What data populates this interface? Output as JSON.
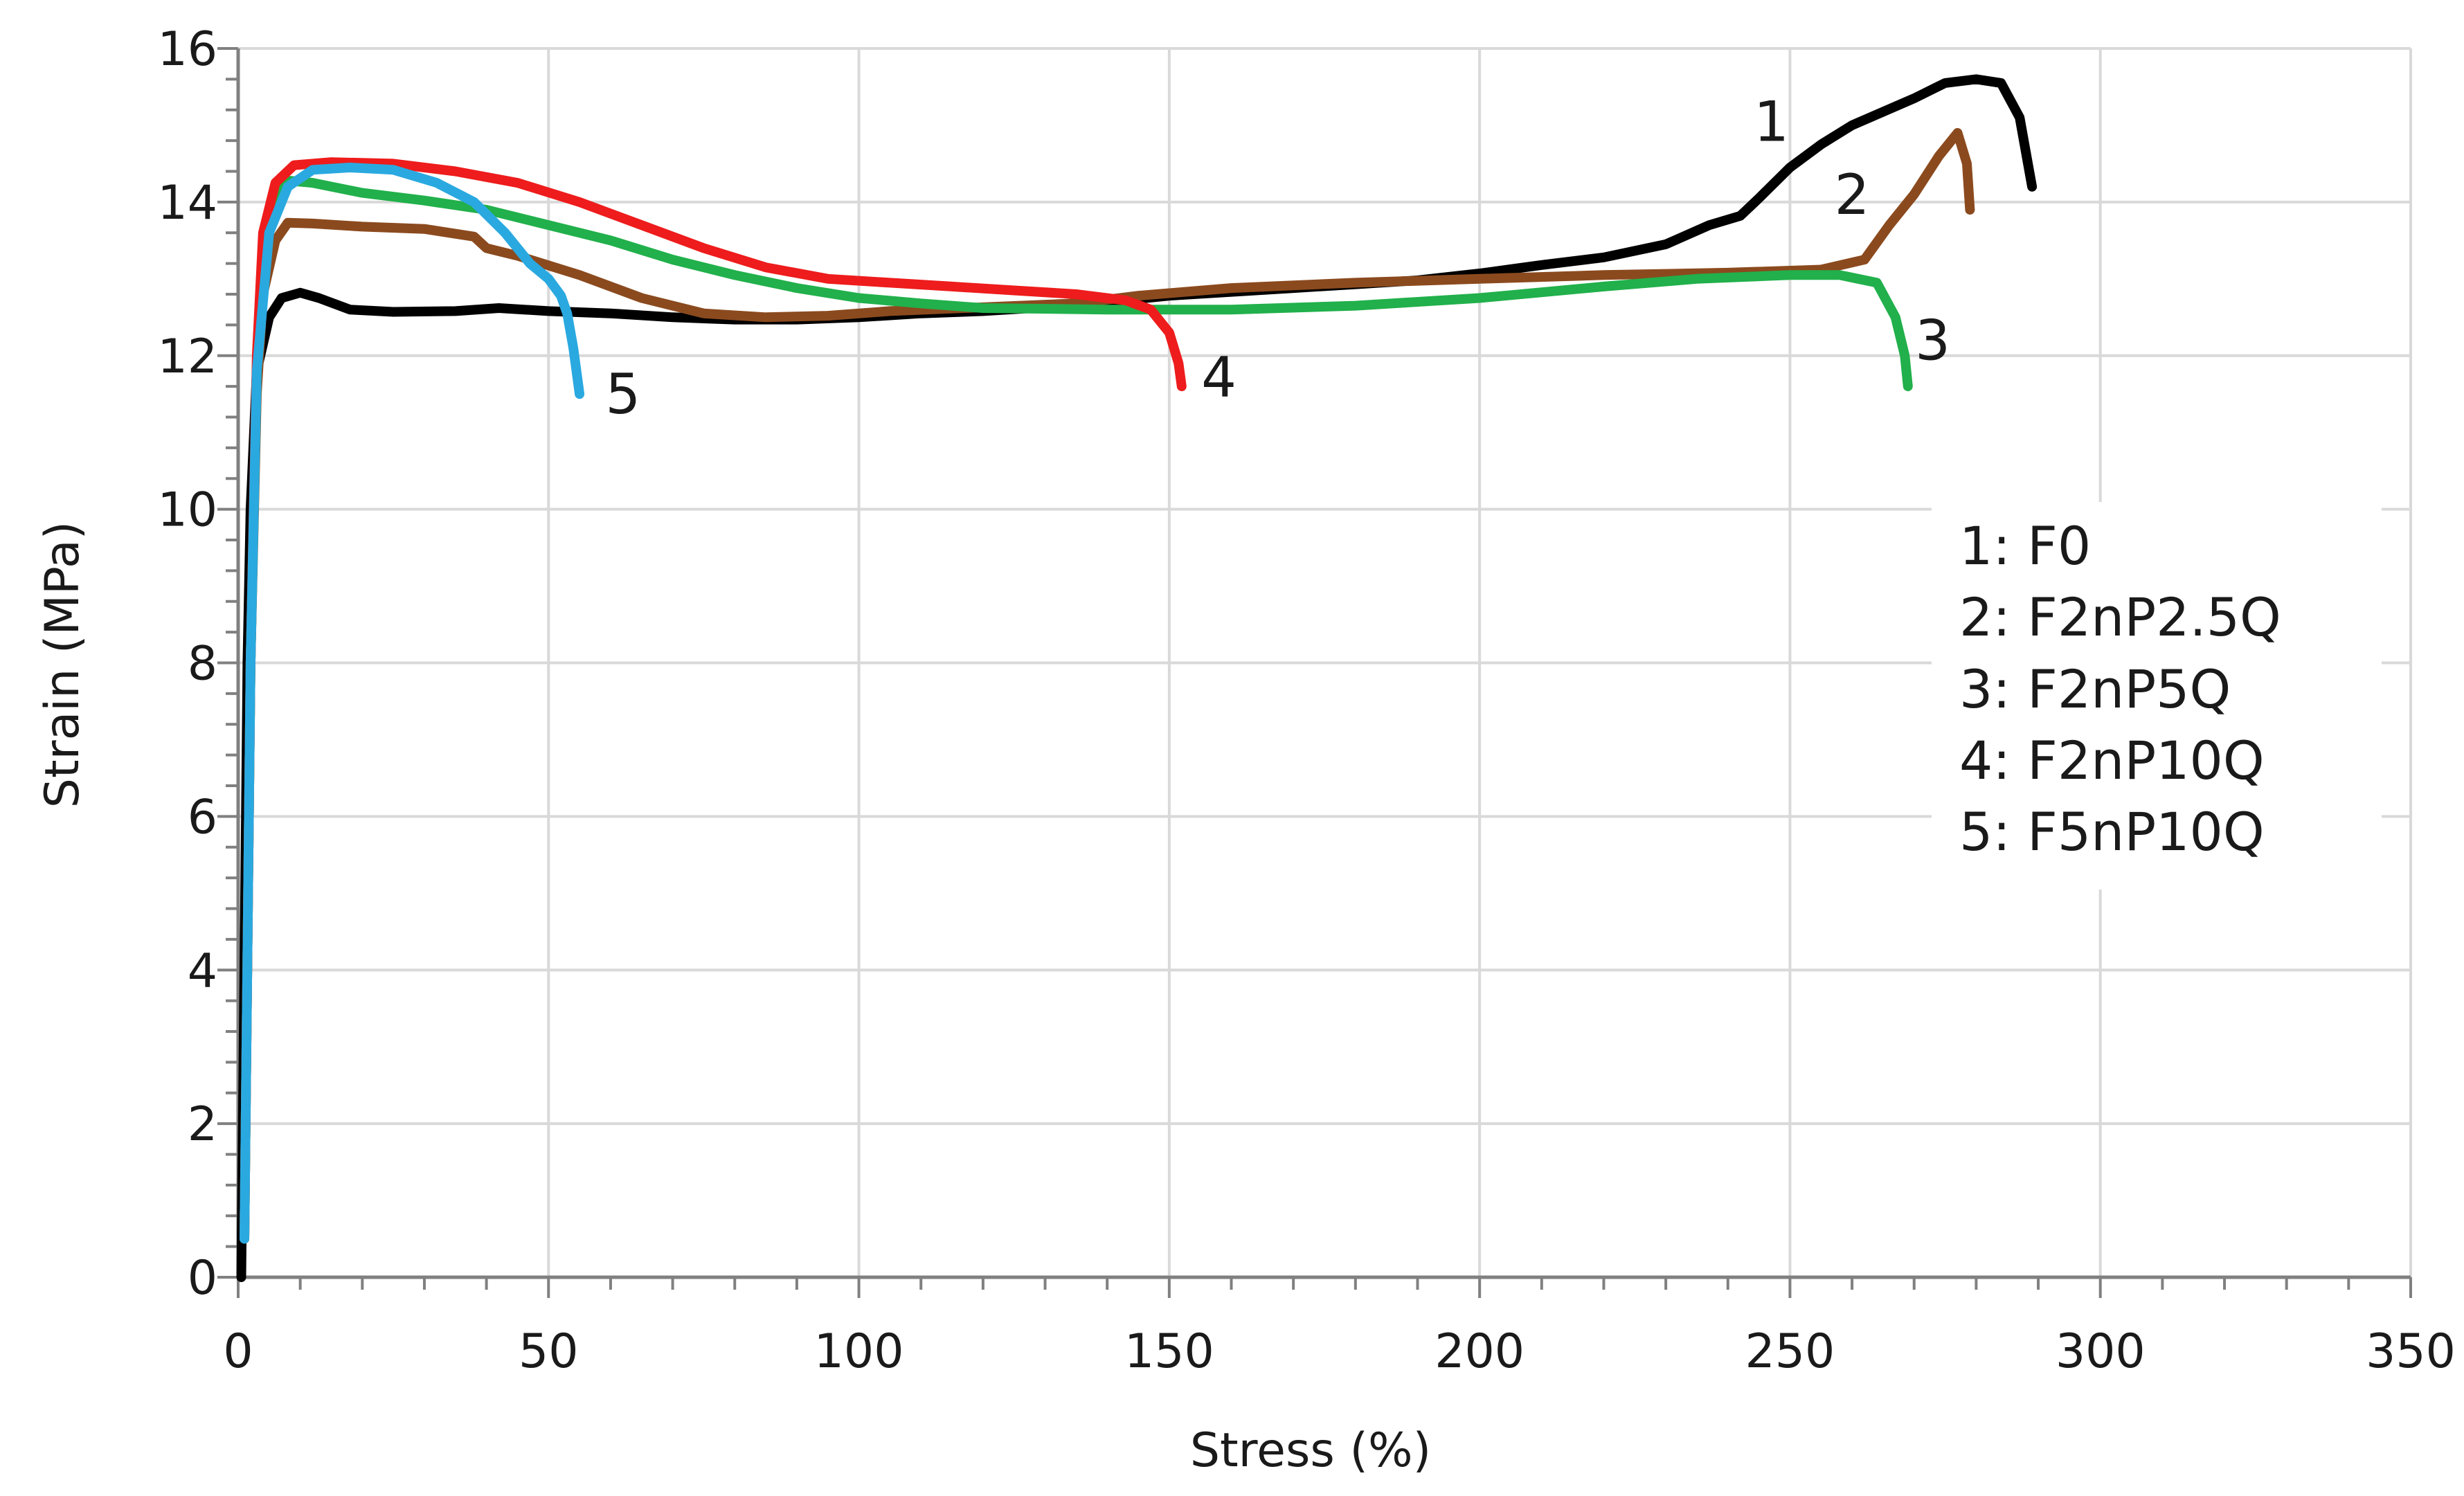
{
  "chart_data": {
    "type": "line",
    "title": "",
    "xlabel": "Stress (%)",
    "ylabel": "Strain (MPa)",
    "xlim": [
      0,
      350
    ],
    "ylim": [
      0,
      16
    ],
    "x_ticks": [
      0,
      50,
      100,
      150,
      200,
      250,
      300,
      350
    ],
    "y_ticks": [
      0,
      2,
      4,
      6,
      8,
      10,
      12,
      14,
      16
    ],
    "x_tick_labels": [
      "0",
      "50",
      "100",
      "150",
      "200",
      "250",
      "300",
      "350"
    ],
    "y_tick_labels": [
      "0",
      "2",
      "4",
      "6",
      "8",
      "10",
      "12",
      "14",
      "16"
    ],
    "grid": true,
    "legend_position": "right",
    "legend": [
      "1: F0",
      "2: F2nP2.5Q",
      "3: F2nP5Q",
      "4: F2nP10Q",
      "5: F5nP10Q"
    ],
    "series": [
      {
        "name": "F0",
        "label": "1",
        "color": "#000000",
        "label_at": [
          247,
          15.05
        ],
        "points": [
          [
            0.5,
            0
          ],
          [
            1,
            4
          ],
          [
            1.5,
            8
          ],
          [
            2,
            10
          ],
          [
            3,
            11.8
          ],
          [
            5,
            12.5
          ],
          [
            7,
            12.75
          ],
          [
            10,
            12.82
          ],
          [
            13,
            12.75
          ],
          [
            18,
            12.6
          ],
          [
            25,
            12.57
          ],
          [
            35,
            12.58
          ],
          [
            42,
            12.62
          ],
          [
            50,
            12.58
          ],
          [
            60,
            12.55
          ],
          [
            70,
            12.5
          ],
          [
            80,
            12.47
          ],
          [
            90,
            12.47
          ],
          [
            100,
            12.5
          ],
          [
            110,
            12.55
          ],
          [
            120,
            12.58
          ],
          [
            130,
            12.63
          ],
          [
            140,
            12.7
          ],
          [
            150,
            12.78
          ],
          [
            160,
            12.83
          ],
          [
            170,
            12.88
          ],
          [
            180,
            12.93
          ],
          [
            190,
            12.98
          ],
          [
            200,
            13.07
          ],
          [
            210,
            13.18
          ],
          [
            220,
            13.28
          ],
          [
            230,
            13.45
          ],
          [
            237,
            13.7
          ],
          [
            242,
            13.82
          ],
          [
            245,
            14.05
          ],
          [
            250,
            14.45
          ],
          [
            255,
            14.75
          ],
          [
            260,
            15
          ],
          [
            270,
            15.35
          ],
          [
            275,
            15.55
          ],
          [
            280,
            15.6
          ],
          [
            284,
            15.55
          ],
          [
            287,
            15.1
          ],
          [
            289,
            14.2
          ]
        ]
      },
      {
        "name": "F2nP2.5Q",
        "label": "2",
        "color": "#8b4a1e",
        "label_at": [
          260,
          14.1
        ],
        "points": [
          [
            1,
            0.5
          ],
          [
            2,
            8
          ],
          [
            3,
            11.5
          ],
          [
            4,
            12.8
          ],
          [
            6,
            13.5
          ],
          [
            8,
            13.73
          ],
          [
            12,
            13.72
          ],
          [
            20,
            13.68
          ],
          [
            30,
            13.65
          ],
          [
            38,
            13.55
          ],
          [
            40,
            13.4
          ],
          [
            45,
            13.3
          ],
          [
            55,
            13.05
          ],
          [
            65,
            12.75
          ],
          [
            75,
            12.55
          ],
          [
            85,
            12.5
          ],
          [
            95,
            12.52
          ],
          [
            105,
            12.58
          ],
          [
            120,
            12.63
          ],
          [
            135,
            12.68
          ],
          [
            145,
            12.78
          ],
          [
            160,
            12.88
          ],
          [
            180,
            12.95
          ],
          [
            200,
            13
          ],
          [
            220,
            13.05
          ],
          [
            240,
            13.08
          ],
          [
            255,
            13.12
          ],
          [
            262,
            13.25
          ],
          [
            266,
            13.7
          ],
          [
            270,
            14.1
          ],
          [
            274,
            14.6
          ],
          [
            277,
            14.9
          ],
          [
            278.5,
            14.5
          ],
          [
            279,
            13.9
          ]
        ]
      },
      {
        "name": "F2nP5Q",
        "label": "3",
        "color": "#21b04b",
        "label_at": [
          273,
          12.2
        ],
        "points": [
          [
            1,
            0.5
          ],
          [
            2,
            8
          ],
          [
            3,
            11.8
          ],
          [
            4,
            13.3
          ],
          [
            6,
            14
          ],
          [
            8,
            14.28
          ],
          [
            12,
            14.25
          ],
          [
            20,
            14.12
          ],
          [
            30,
            14.02
          ],
          [
            40,
            13.9
          ],
          [
            50,
            13.7
          ],
          [
            60,
            13.5
          ],
          [
            70,
            13.25
          ],
          [
            80,
            13.05
          ],
          [
            90,
            12.88
          ],
          [
            100,
            12.75
          ],
          [
            110,
            12.68
          ],
          [
            120,
            12.62
          ],
          [
            140,
            12.6
          ],
          [
            160,
            12.6
          ],
          [
            180,
            12.65
          ],
          [
            200,
            12.75
          ],
          [
            220,
            12.9
          ],
          [
            235,
            13
          ],
          [
            250,
            13.05
          ],
          [
            258,
            13.05
          ],
          [
            264,
            12.95
          ],
          [
            267,
            12.5
          ],
          [
            268.5,
            12
          ],
          [
            269,
            11.6
          ]
        ]
      },
      {
        "name": "F2nP10Q",
        "label": "4",
        "color": "#ee1c1c",
        "label_at": [
          158,
          11.72
        ],
        "points": [
          [
            1,
            0.5
          ],
          [
            2,
            8
          ],
          [
            3,
            12
          ],
          [
            4,
            13.6
          ],
          [
            6,
            14.25
          ],
          [
            9,
            14.48
          ],
          [
            15,
            14.52
          ],
          [
            25,
            14.5
          ],
          [
            35,
            14.4
          ],
          [
            45,
            14.25
          ],
          [
            55,
            14
          ],
          [
            65,
            13.7
          ],
          [
            75,
            13.4
          ],
          [
            85,
            13.15
          ],
          [
            95,
            13
          ],
          [
            105,
            12.95
          ],
          [
            115,
            12.9
          ],
          [
            125,
            12.85
          ],
          [
            135,
            12.8
          ],
          [
            143,
            12.72
          ],
          [
            147,
            12.6
          ],
          [
            150,
            12.3
          ],
          [
            151.5,
            11.9
          ],
          [
            152,
            11.6
          ]
        ]
      },
      {
        "name": "F5nP10Q",
        "label": "5",
        "color": "#2aa9e0",
        "label_at": [
          62,
          11.5
        ],
        "points": [
          [
            1,
            0.5
          ],
          [
            2,
            8
          ],
          [
            3,
            11.8
          ],
          [
            5,
            13.6
          ],
          [
            8,
            14.2
          ],
          [
            12,
            14.42
          ],
          [
            18,
            14.45
          ],
          [
            25,
            14.42
          ],
          [
            32,
            14.25
          ],
          [
            38,
            14
          ],
          [
            43,
            13.6
          ],
          [
            47,
            13.2
          ],
          [
            50,
            13
          ],
          [
            52,
            12.78
          ],
          [
            53,
            12.55
          ],
          [
            54,
            12.1
          ],
          [
            55,
            11.5
          ]
        ]
      }
    ]
  }
}
